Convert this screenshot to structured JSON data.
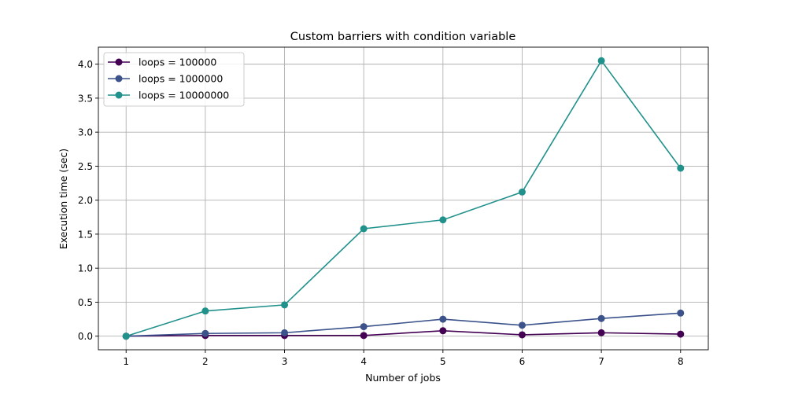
{
  "chart_data": {
    "type": "line",
    "title": "Custom barriers with condition variable",
    "xlabel": "Number of jobs",
    "ylabel": "Execution time (sec)",
    "x": [
      1,
      2,
      3,
      4,
      5,
      6,
      7,
      8
    ],
    "xticks": [
      "1",
      "2",
      "3",
      "4",
      "5",
      "6",
      "7",
      "8"
    ],
    "yticks": [
      0.0,
      0.5,
      1.0,
      1.5,
      2.0,
      2.5,
      3.0,
      3.5,
      4.0
    ],
    "ytick_labels": [
      "0.0",
      "0.5",
      "1.0",
      "1.5",
      "2.0",
      "2.5",
      "3.0",
      "3.5",
      "4.0"
    ],
    "xlim": [
      0.65,
      8.35
    ],
    "ylim": [
      -0.2,
      4.25
    ],
    "grid": true,
    "legend_position": "upper-left",
    "series": [
      {
        "name": "loops = 100000",
        "color": "#440154",
        "values": [
          0.0,
          0.01,
          0.01,
          0.01,
          0.08,
          0.02,
          0.05,
          0.03
        ]
      },
      {
        "name": "loops = 1000000",
        "color": "#3b528b",
        "values": [
          0.0,
          0.04,
          0.05,
          0.14,
          0.25,
          0.16,
          0.26,
          0.34
        ]
      },
      {
        "name": "loops = 10000000",
        "color": "#21918c",
        "values": [
          0.0,
          0.37,
          0.46,
          1.58,
          1.71,
          2.12,
          4.05,
          2.47
        ]
      }
    ]
  }
}
